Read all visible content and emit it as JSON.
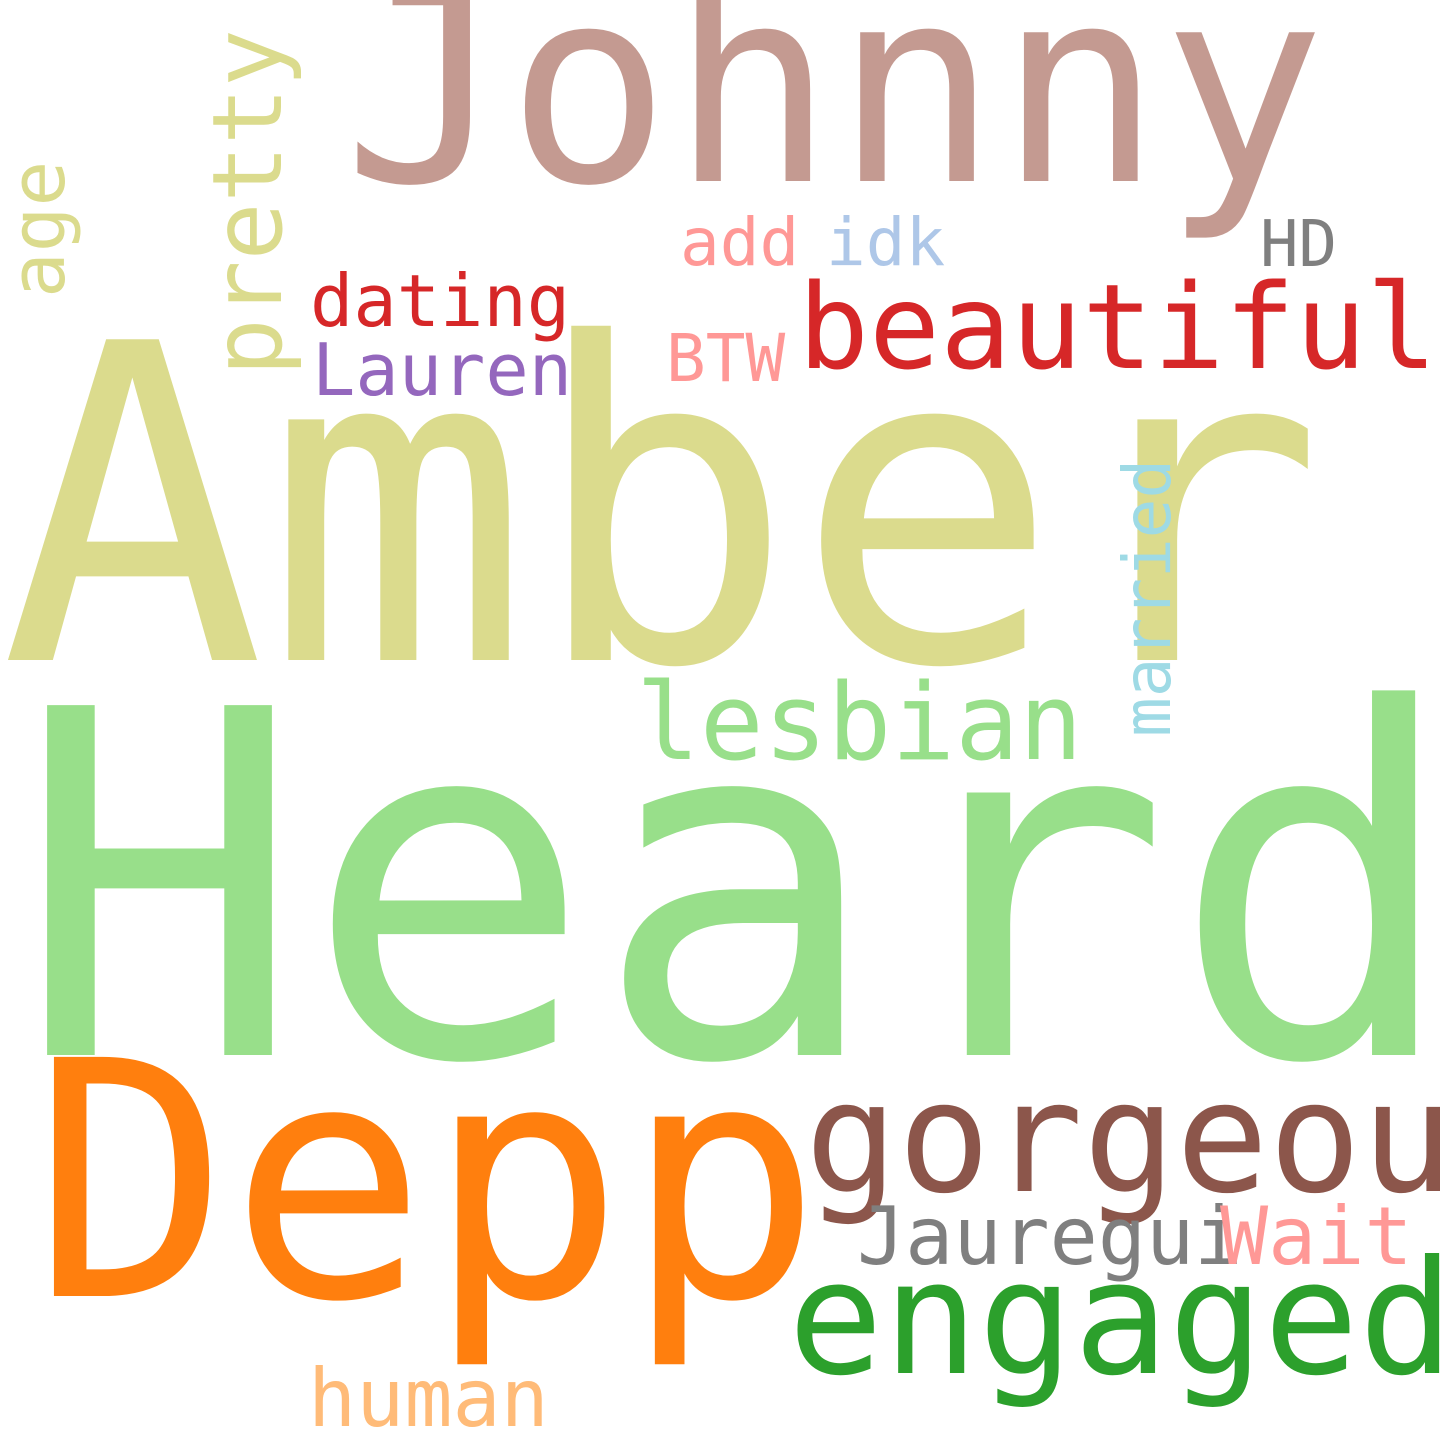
{
  "colors": {
    "background": "#ffffff",
    "rose_taupe": "#c49a91",
    "khaki": "#dbdb8d",
    "light_green": "#98df8a",
    "orange": "#ff7f0e",
    "brown": "#8c564b",
    "green": "#2ca02c",
    "red": "#d62728",
    "salmon": "#ff9896",
    "light_blue": "#aec7e8",
    "gray": "#7f7f7f",
    "purple": "#9467bd",
    "sky": "#9edae5",
    "peach": "#ffbb78"
  },
  "words": {
    "johnny": "Johnny",
    "amber": "Amber",
    "heard": "Heard",
    "depp": "Depp",
    "gorgeous": "gorgeous",
    "engaged": "engaged",
    "beautiful": "beautiful",
    "lesbian": "lesbian",
    "pretty": "pretty",
    "age": "age",
    "married": "married",
    "dating": "dating",
    "lauren": "Lauren",
    "btw": "BTW",
    "add": "add",
    "idk": "idk",
    "hd": "HD",
    "jauregui": "Jauregui",
    "wait": "Wait",
    "human": "human"
  }
}
